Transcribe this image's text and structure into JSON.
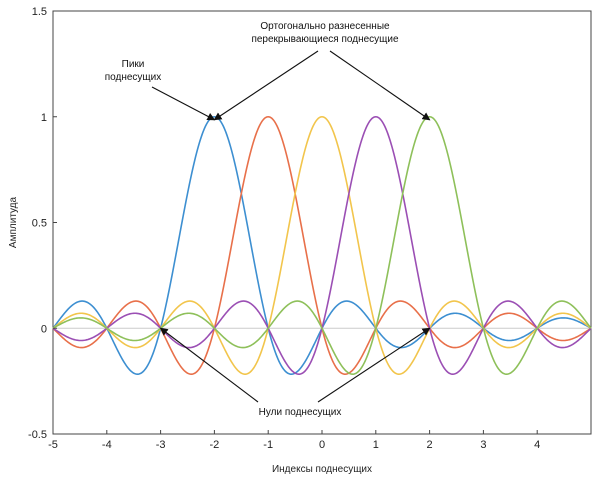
{
  "chart_data": {
    "type": "line",
    "title": "",
    "xlabel": "Индексы поднесущих",
    "ylabel": "Амплитуда",
    "xlim": [
      -5,
      5
    ],
    "ylim": [
      -0.5,
      1.5
    ],
    "x_ticks": [
      -5,
      -4,
      -3,
      -2,
      -1,
      0,
      1,
      2,
      3,
      4
    ],
    "y_ticks": [
      -0.5,
      0,
      0.5,
      1,
      1.5
    ],
    "y_tick_labels": [
      "-0.5",
      "0",
      "0.5",
      "1",
      "1.5"
    ],
    "grid": false,
    "zero_line": true,
    "function": "sinc(x - center)",
    "series": [
      {
        "center": -2,
        "peak": 1,
        "color": "#3d8fd1"
      },
      {
        "center": -1,
        "peak": 1,
        "color": "#e8704a"
      },
      {
        "center": 0,
        "peak": 1,
        "color": "#f2c54c"
      },
      {
        "center": 1,
        "peak": 1,
        "color": "#9b4fb4"
      },
      {
        "center": 2,
        "peak": 1,
        "color": "#8ec05a"
      }
    ],
    "annotations": [
      {
        "lines": [
          "Ортогонально разнесенные",
          "перекрывающиеся поднесущие"
        ],
        "arrow_targets": [
          [
            -2,
            1
          ],
          [
            2,
            1
          ]
        ]
      },
      {
        "lines": [
          "Пики",
          "поднесущих"
        ],
        "arrow_targets": [
          [
            -2,
            1
          ]
        ]
      },
      {
        "lines": [
          "Нули поднесущих"
        ],
        "arrow_targets": [
          [
            -3,
            0
          ],
          [
            2,
            0
          ]
        ]
      }
    ]
  }
}
